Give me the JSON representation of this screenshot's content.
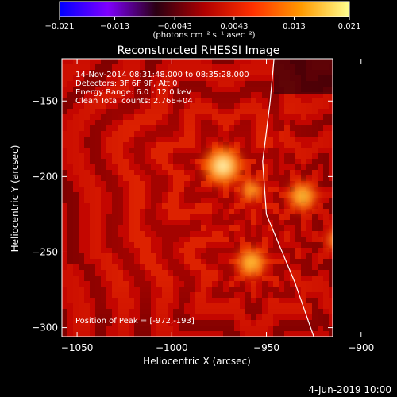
{
  "chart_data": {
    "type": "heatmap",
    "title": "Reconstructed RHESSI Image",
    "xlabel": "Heliocentric X (arcsec)",
    "ylabel": "Heliocentric Y (arcsec)",
    "xlim": [
      -1058,
      -915
    ],
    "ylim": [
      -306,
      -122
    ],
    "x_ticks": [
      {
        "value": -1050,
        "label": "−1050"
      },
      {
        "value": -1000,
        "label": "−1000"
      },
      {
        "value": -950,
        "label": "−950"
      },
      {
        "value": -900,
        "label": "−900"
      }
    ],
    "y_ticks": [
      {
        "value": -150,
        "label": "−150"
      },
      {
        "value": -200,
        "label": "−200"
      },
      {
        "value": -250,
        "label": "−250"
      },
      {
        "value": -300,
        "label": "−300"
      }
    ],
    "colorbar": {
      "min": -0.021,
      "max": 0.021,
      "unit": "(photons cm⁻² s⁻¹ asec⁻²)",
      "tick_values": [
        -0.021,
        -0.013,
        -0.0043,
        0.0043,
        0.013,
        0.021
      ],
      "tick_labels": [
        "−0.021",
        "−0.013",
        "−0.0043",
        "0.0043",
        "0.013",
        "0.021"
      ],
      "colors": [
        "#0000ff",
        "#7f00ff",
        "#2a0012",
        "#b00000",
        "#ff3000",
        "#ff9a00",
        "#ffff90"
      ]
    },
    "sources": [
      {
        "x": -973,
        "y": -193,
        "intensity": 1.0
      },
      {
        "x": -931,
        "y": -213,
        "intensity": 0.62
      },
      {
        "x": -958,
        "y": -257,
        "intensity": 0.65
      },
      {
        "x": -958,
        "y": -209,
        "intensity": 0.35
      },
      {
        "x": -913,
        "y": -242,
        "intensity": 0.3
      }
    ],
    "limb_line": [
      [
        -946,
        -122
      ],
      [
        -948,
        -150
      ],
      [
        -952,
        -190
      ],
      [
        -950,
        -225
      ],
      [
        -935,
        -270
      ],
      [
        -925,
        -306
      ]
    ],
    "info_lines": [
      "14-Nov-2014 08:31:48.000 to 08:35:28.000",
      "Detectors: 3F 6F 9F, Att 0",
      "Energy Range: 6.0 - 12.0 keV",
      "Clean     Total counts: 2.76E+04"
    ],
    "peak_label": "Position of Peak = [-972,-193]",
    "peak": [
      -972,
      -193
    ]
  },
  "footer": {
    "date": "4-Jun-2019 10:00"
  }
}
